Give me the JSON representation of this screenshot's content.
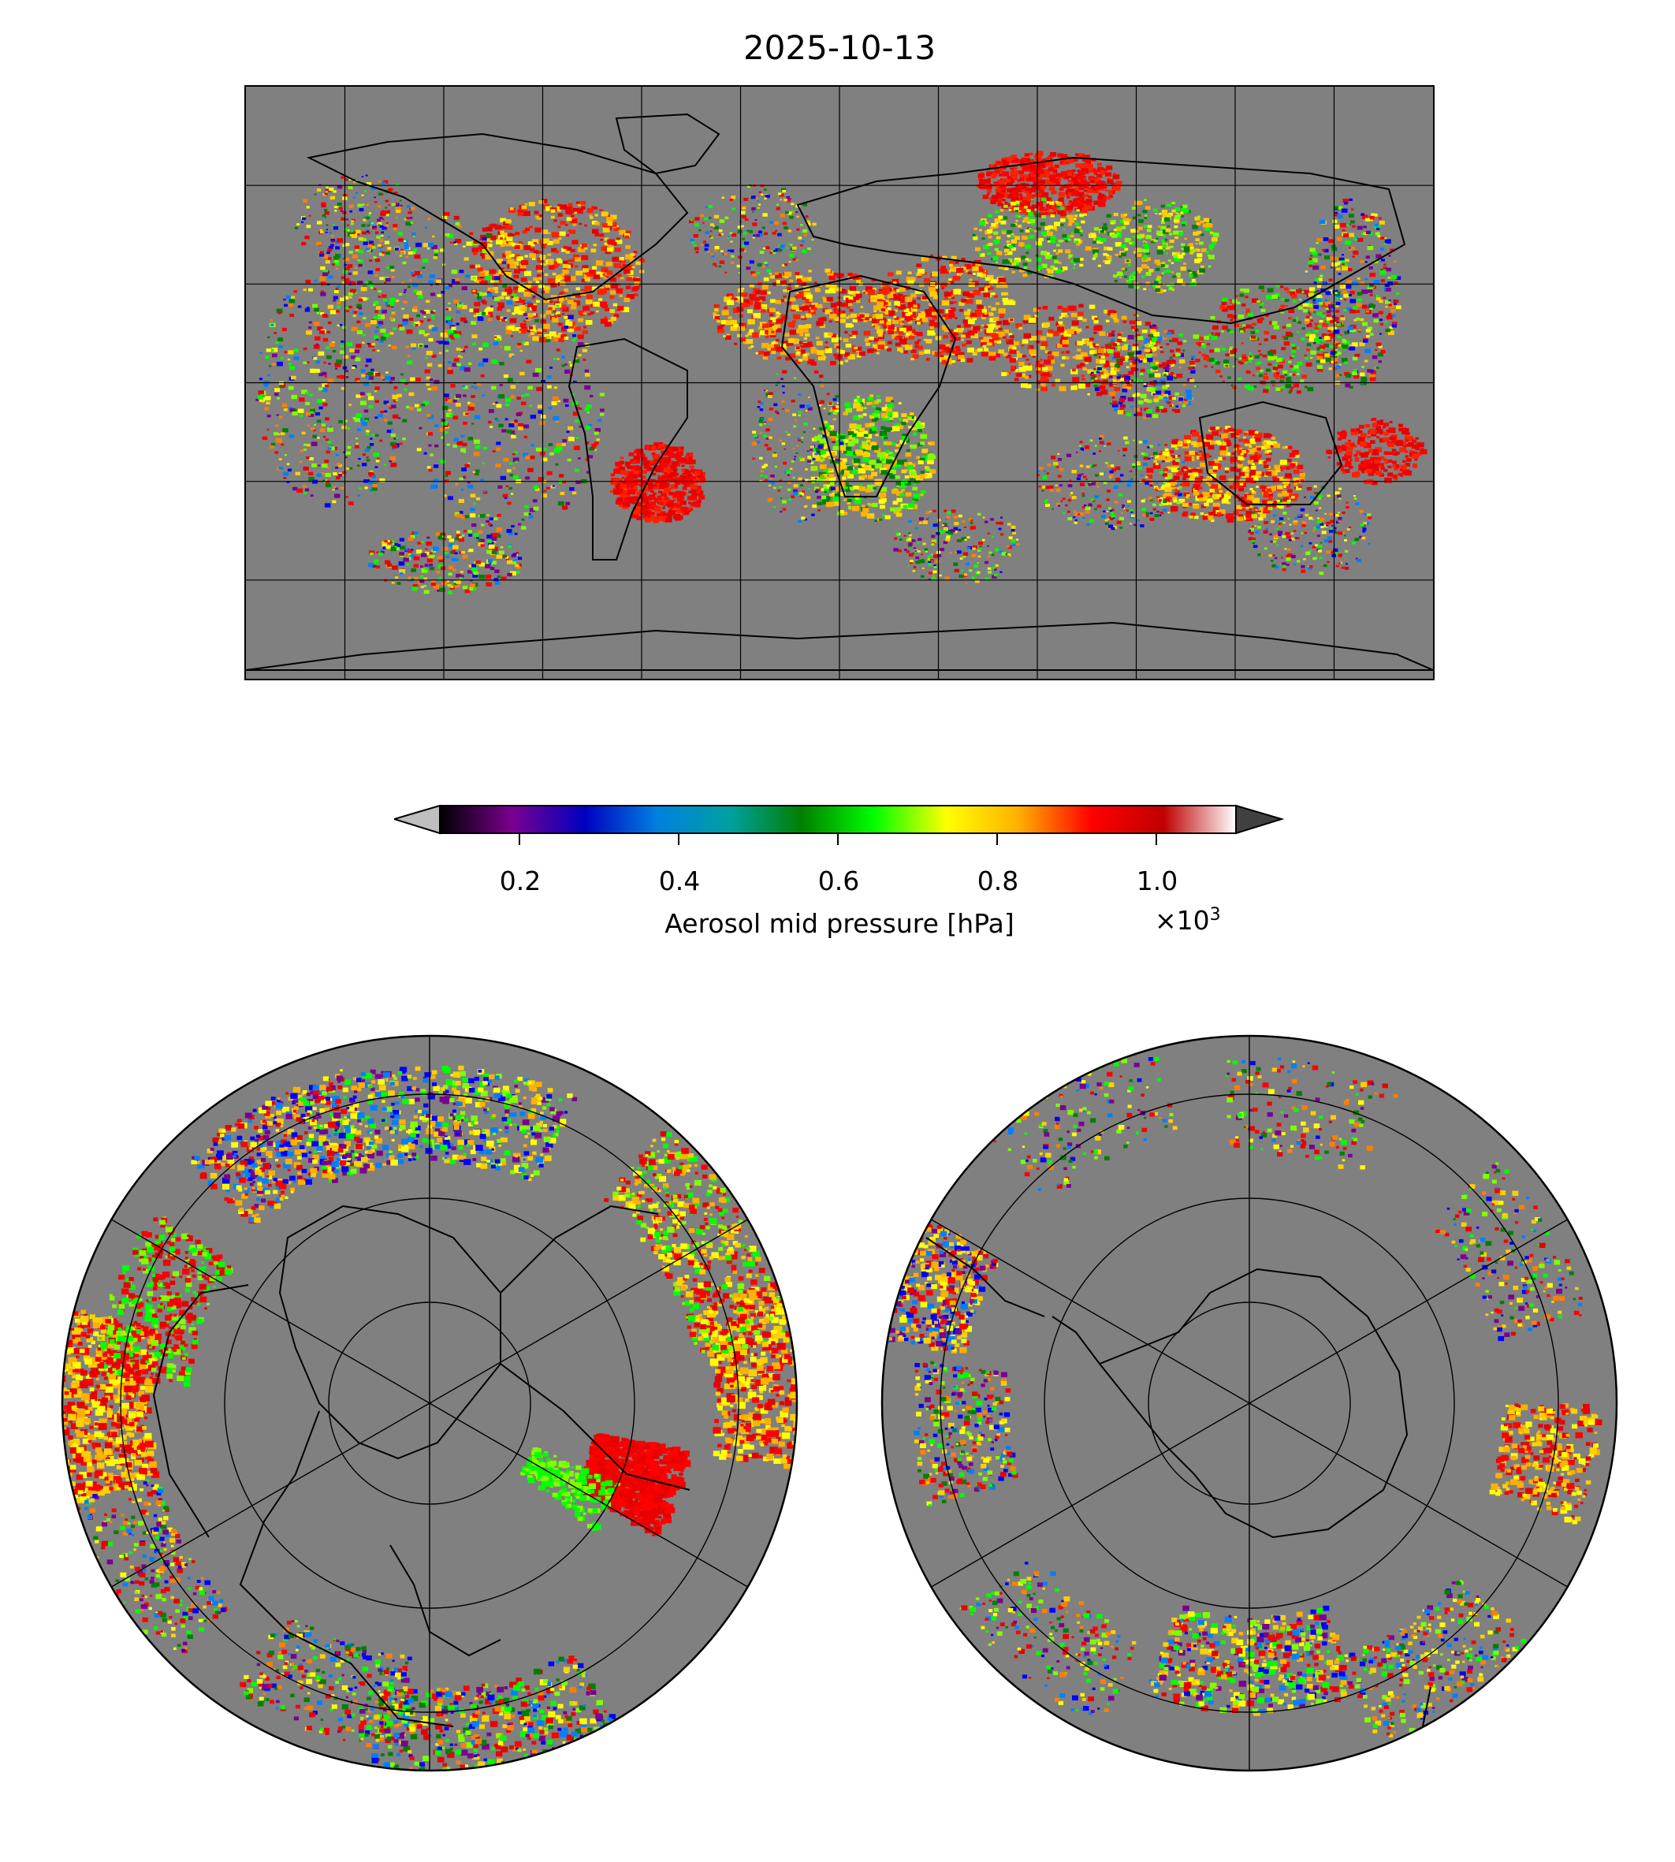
{
  "title": "2025-10-13",
  "colorbar": {
    "label": "Aerosol mid pressure [hPa]",
    "multiplier": "×10",
    "multiplier_exp": "3",
    "ticks": [
      "0.2",
      "0.4",
      "0.6",
      "0.8",
      "1.0"
    ],
    "tick_values": [
      0.2,
      0.4,
      0.6,
      0.8,
      1.0
    ],
    "range": [
      0.1,
      1.1
    ],
    "colormap_stops": [
      "#000000",
      "#7a0090",
      "#0000c0",
      "#0080e0",
      "#00a0a0",
      "#008000",
      "#00ff00",
      "#ffff00",
      "#ffb000",
      "#ff0000",
      "#c00000",
      "#ffffff"
    ],
    "under_color": "#bfbfbf",
    "over_color": "#404040"
  },
  "maps": {
    "background_color": "#808080",
    "palette": [
      "#ff0000",
      "#e80000",
      "#ffd000",
      "#ffff00",
      "#00ff00",
      "#80ff00",
      "#0000ff",
      "#0080ff",
      "#008000",
      "#ff8000",
      "#7a0090"
    ],
    "world": {
      "projection": "PlateCarree",
      "gridlines": true
    },
    "north": {
      "projection": "NorthPolarStereo",
      "gridlines": true
    },
    "south": {
      "projection": "SouthPolarStereo",
      "gridlines": true
    }
  }
}
